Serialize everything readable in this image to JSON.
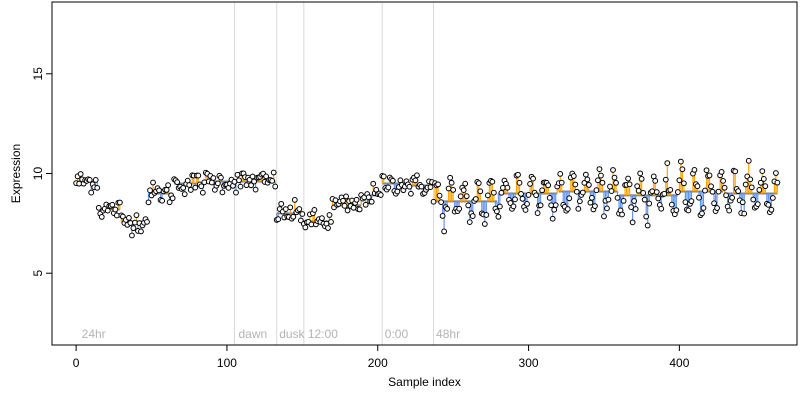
{
  "chart_data": {
    "type": "scatter",
    "xlabel": "Sample index",
    "ylabel": "Expression",
    "xlim": [
      -16,
      478
    ],
    "ylim": [
      1.4,
      18.6
    ],
    "xticks": [
      0,
      100,
      200,
      300,
      400
    ],
    "yticks": [
      5,
      10,
      15
    ],
    "baseline_color": "#808080",
    "up_color": "#FFA500",
    "down_color": "#6495ED",
    "point_fill": "#FFFFFF",
    "point_stroke": "#000000",
    "reference_lines": [
      {
        "x": 105,
        "label": ""
      },
      {
        "x": 133,
        "label": ""
      },
      {
        "x": 151,
        "label": ""
      },
      {
        "x": 203,
        "label": ""
      },
      {
        "x": 237,
        "label": ""
      }
    ],
    "annotations": [
      {
        "x": 3,
        "label": "24hr"
      },
      {
        "x": 107,
        "label": "dawn"
      },
      {
        "x": 134,
        "label": "dusk"
      },
      {
        "x": 153,
        "label": "12:00"
      },
      {
        "x": 204,
        "label": "0:00"
      },
      {
        "x": 238,
        "label": "48hr"
      }
    ],
    "segments": [
      {
        "start": 0,
        "end": 15,
        "base": 9.6
      },
      {
        "start": 15,
        "end": 30,
        "base": 8.2
      },
      {
        "start": 30,
        "end": 48,
        "base": 7.6
      },
      {
        "start": 48,
        "end": 65,
        "base": 9.0
      },
      {
        "start": 65,
        "end": 85,
        "base": 9.5
      },
      {
        "start": 85,
        "end": 105,
        "base": 9.6
      },
      {
        "start": 105,
        "end": 133,
        "base": 9.6
      },
      {
        "start": 133,
        "end": 151,
        "base": 8.0
      },
      {
        "start": 151,
        "end": 170,
        "base": 7.6
      },
      {
        "start": 170,
        "end": 190,
        "base": 8.4
      },
      {
        "start": 190,
        "end": 203,
        "base": 8.9
      },
      {
        "start": 203,
        "end": 220,
        "base": 9.5
      },
      {
        "start": 220,
        "end": 237,
        "base": 9.4
      },
      {
        "start": 237,
        "end": 280,
        "base": 8.6
      },
      {
        "start": 280,
        "end": 320,
        "base": 9.0
      },
      {
        "start": 320,
        "end": 360,
        "base": 9.1
      },
      {
        "start": 360,
        "end": 400,
        "base": 8.9
      },
      {
        "start": 400,
        "end": 430,
        "base": 9.1
      },
      {
        "start": 430,
        "end": 466,
        "base": 9.0
      }
    ],
    "n_points": 466,
    "noise": 0.45,
    "oscillation_start": 237,
    "oscillation_period": 9,
    "oscillation_amplitude": 0.9
  }
}
